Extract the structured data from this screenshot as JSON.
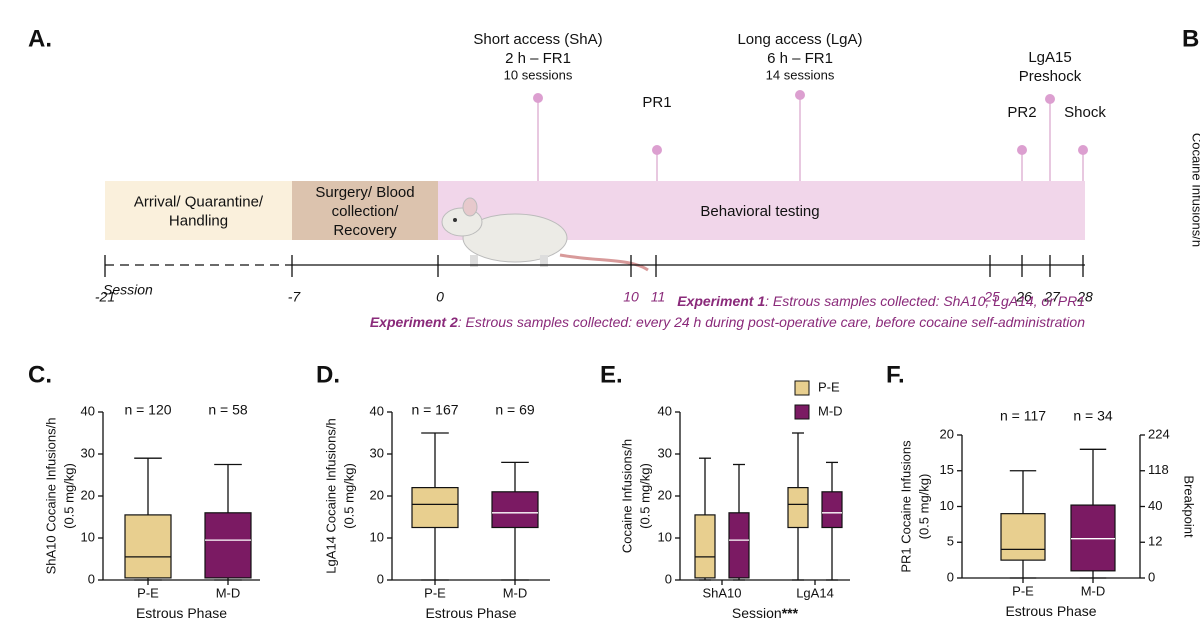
{
  "panel_a": {
    "label": "A.",
    "phases": [
      [
        "Arrival/ Quarantine/",
        "Handling"
      ],
      [
        "Surgery/ Blood",
        "collection/",
        "Recovery"
      ],
      [
        "Behavioral testing"
      ]
    ],
    "phase_colors": [
      "#faf0dc",
      "#dcc3ae",
      "#f1d6ea"
    ],
    "sessions": [
      -21,
      -7,
      0,
      10,
      11,
      25,
      26,
      27,
      28
    ],
    "session_colors": [
      "#111",
      "#111",
      "#111",
      "#8a2a7a",
      "#8a2a7a",
      "#8a2a7a",
      "#111",
      "#111",
      "#111"
    ],
    "axis_label": "Session",
    "events": [
      {
        "lines": [
          "Short access (ShA)",
          "2 h – FR1",
          "10 sessions"
        ]
      },
      {
        "lines": [
          "PR1"
        ]
      },
      {
        "lines": [
          "Long access (LgA)",
          "6 h – FR1",
          "14 sessions"
        ]
      },
      {
        "lines": [
          "PR2"
        ]
      },
      {
        "lines": [
          "LgA15",
          "Preshock"
        ]
      },
      {
        "lines": [
          "Shock"
        ]
      }
    ],
    "experiments": [
      {
        "name": "Experiment 1",
        "text": ": Estrous samples collected: ShA10, LgA14, or PR1"
      },
      {
        "name": "Experiment 2",
        "text": ": Estrous samples collected: every 24 h during post-operative care, before cocaine self-administration"
      }
    ]
  },
  "panel_b": {
    "label": "B",
    "ylabel": "Cocaine Infusions/h"
  },
  "chart_data": [
    {
      "type": "box",
      "panel": "C.",
      "ylabel": [
        "ShA10 Cocaine Infusions/h",
        "(0.5 mg/kg)"
      ],
      "xlabel": "Estrous Phase",
      "categories": [
        "P-E",
        "M-D"
      ],
      "colors": [
        "#e8cf8f",
        "#7b1a63"
      ],
      "n_labels": [
        "n = 120",
        "n = 58"
      ],
      "boxes": [
        {
          "min": 0,
          "q1": 0.5,
          "median": 5.5,
          "q3": 15.5,
          "max": 29
        },
        {
          "min": 0,
          "q1": 0.5,
          "median": 9.5,
          "q3": 16,
          "max": 27.5
        }
      ],
      "ylim": [
        0,
        40
      ],
      "yticks": [
        0,
        10,
        20,
        30,
        40
      ]
    },
    {
      "type": "box",
      "panel": "D.",
      "ylabel": [
        "LgA14 Cocaine Infusions/h",
        "(0.5 mg/kg)"
      ],
      "xlabel": "Estrous Phase",
      "categories": [
        "P-E",
        "M-D"
      ],
      "colors": [
        "#e8cf8f",
        "#7b1a63"
      ],
      "n_labels": [
        "n = 167",
        "n = 69"
      ],
      "boxes": [
        {
          "min": 0,
          "q1": 12.5,
          "median": 18,
          "q3": 22,
          "max": 35
        },
        {
          "min": 0,
          "q1": 12.5,
          "median": 16,
          "q3": 21,
          "max": 28
        }
      ],
      "ylim": [
        0,
        40
      ],
      "yticks": [
        0,
        10,
        20,
        30,
        40
      ]
    },
    {
      "type": "grouped-box",
      "panel": "E.",
      "ylabel": [
        "Cocaine Infusions/h",
        "(0.5 mg/kg)"
      ],
      "xlabel": "Session",
      "significance": "***",
      "categories": [
        "ShA10",
        "LgA14"
      ],
      "series": [
        {
          "name": "P-E",
          "color": "#e8cf8f",
          "boxes": [
            {
              "min": 0,
              "q1": 0.5,
              "median": 5.5,
              "q3": 15.5,
              "max": 29
            },
            {
              "min": 0,
              "q1": 12.5,
              "median": 18,
              "q3": 22,
              "max": 35
            }
          ]
        },
        {
          "name": "M-D",
          "color": "#7b1a63",
          "boxes": [
            {
              "min": 0,
              "q1": 0.5,
              "median": 9.5,
              "q3": 16,
              "max": 27.5
            },
            {
              "min": 0,
              "q1": 12.5,
              "median": 16,
              "q3": 21,
              "max": 28
            }
          ]
        }
      ],
      "ylim": [
        0,
        40
      ],
      "yticks": [
        0,
        10,
        20,
        30,
        40
      ]
    },
    {
      "type": "box",
      "panel": "F.",
      "ylabel": [
        "PR1 Cocaine Infusions",
        "(0.5 mg/kg)"
      ],
      "y2label": "Breakpoint",
      "xlabel": "Estrous Phase",
      "categories": [
        "P-E",
        "M-D"
      ],
      "colors": [
        "#e8cf8f",
        "#7b1a63"
      ],
      "n_labels": [
        "n = 117",
        "n = 34"
      ],
      "boxes": [
        {
          "min": 0,
          "q1": 2.5,
          "median": 4,
          "q3": 9,
          "max": 15
        },
        {
          "min": 0,
          "q1": 1,
          "median": 5.5,
          "q3": 10.2,
          "max": 18
        }
      ],
      "ylim": [
        0,
        20
      ],
      "yticks": [
        0,
        5,
        10,
        15,
        20
      ],
      "y2ticks": [
        0,
        12,
        40,
        118,
        224
      ]
    }
  ]
}
